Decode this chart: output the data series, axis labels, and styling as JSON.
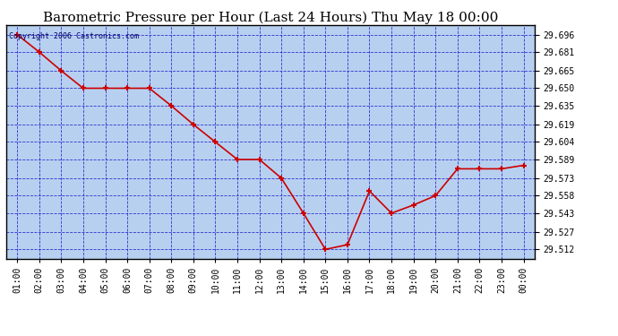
{
  "title": "Barometric Pressure per Hour (Last 24 Hours) Thu May 18 00:00",
  "copyright": "Copyright 2006 Castronics.com",
  "x_labels": [
    "01:00",
    "02:00",
    "03:00",
    "04:00",
    "05:00",
    "06:00",
    "07:00",
    "08:00",
    "09:00",
    "10:00",
    "11:00",
    "12:00",
    "13:00",
    "14:00",
    "15:00",
    "16:00",
    "17:00",
    "18:00",
    "19:00",
    "20:00",
    "21:00",
    "22:00",
    "23:00",
    "00:00"
  ],
  "y_values": [
    29.696,
    29.681,
    29.665,
    29.65,
    29.65,
    29.65,
    29.65,
    29.635,
    29.619,
    29.604,
    29.589,
    29.589,
    29.573,
    29.543,
    29.512,
    29.516,
    29.562,
    29.543,
    29.55,
    29.558,
    29.581,
    29.581,
    29.581,
    29.584
  ],
  "y_ticks": [
    29.512,
    29.527,
    29.543,
    29.558,
    29.573,
    29.589,
    29.604,
    29.619,
    29.635,
    29.65,
    29.665,
    29.681,
    29.696
  ],
  "ylim": [
    29.504,
    29.704
  ],
  "line_color": "#cc0000",
  "marker_color": "#cc0000",
  "bg_color": "#b8d0f0",
  "fig_bg": "#ffffff",
  "grid_color": "#2222cc",
  "title_color": "#000000",
  "title_fontsize": 11,
  "copyright_fontsize": 6,
  "copyright_color": "#000066",
  "tick_fontsize": 7,
  "ytick_fontsize": 7
}
